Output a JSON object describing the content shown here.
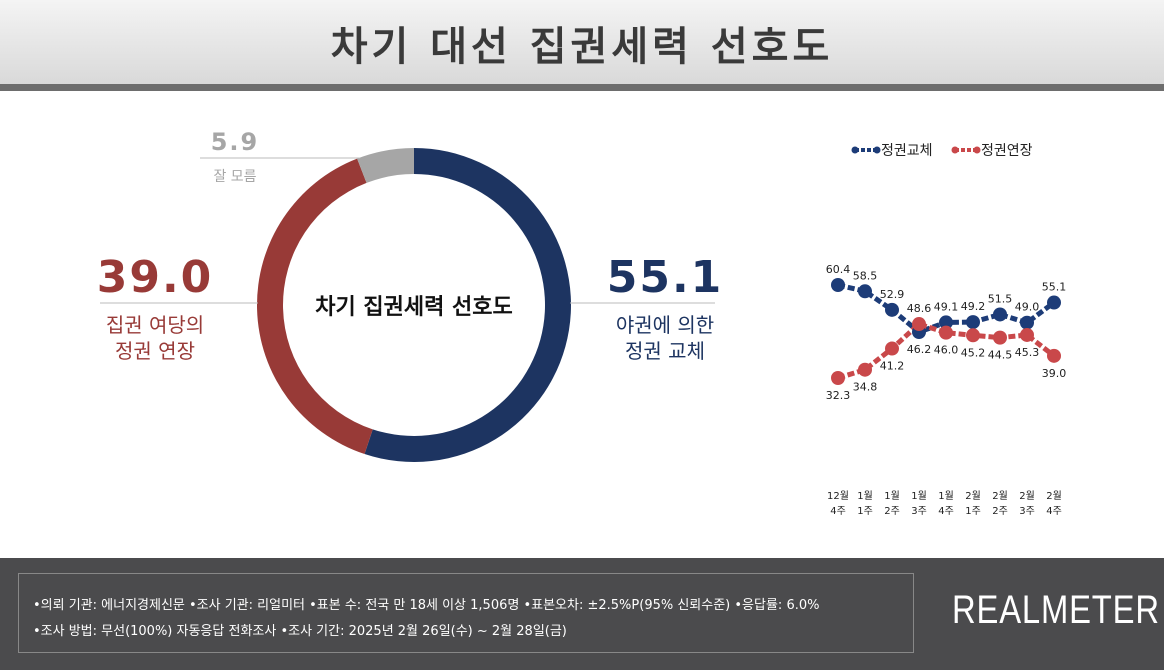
{
  "header": {
    "title": "차기 대선 집권세력 선호도"
  },
  "chart_data": [
    {
      "type": "donut",
      "center_label": "차기 집권세력 선호도",
      "categories": [
        "야권에 의한\n정권 교체",
        "집권 여당의\n정권 연장",
        "잘 모름"
      ],
      "values": [
        55.1,
        39,
        5.9
      ],
      "value_labels": [
        "55.1",
        "39.0",
        "5.9"
      ],
      "colors": [
        "#1d3461",
        "#983a37",
        "#a6a6a6"
      ]
    },
    {
      "type": "line",
      "x": [
        "12월\n4주",
        "1월\n1주",
        "1월\n2주",
        "1월\n3주",
        "1월\n4주",
        "2월\n1주",
        "2월\n2주",
        "2월\n3주",
        "2월\n4주"
      ],
      "series": [
        {
          "name": "정권교체",
          "color": "#1d3c78",
          "values": [
            60.4,
            58.5,
            52.9,
            46.2,
            49.1,
            49.2,
            51.5,
            49,
            55.1
          ],
          "value_labels": [
            "60.4",
            "58.5",
            "52.9",
            "46.2",
            "49.1",
            "49.2",
            "51.5",
            "49.0",
            "55.1"
          ]
        },
        {
          "name": "정권연장",
          "color": "#c9484a",
          "values": [
            32.3,
            34.8,
            41.2,
            48.6,
            46,
            45.2,
            44.5,
            45.3,
            39
          ],
          "value_labels": [
            "32.3",
            "34.8",
            "41.2",
            "48.6",
            "46.0",
            "45.2",
            "44.5",
            "45.3",
            "39.0"
          ]
        }
      ]
    }
  ],
  "footer": {
    "notes": [
      "•의뢰 기관: 에너지경제신문 •조사 기관: 리얼미터 •표본 수: 전국 만 18세 이상 1,506명 •표본오차: ±2.5%P(95% 신뢰수준) •응답률: 6.0%",
      "•조사 방법: 무선(100%) 자동응답 전화조사 •조사 기간: 2025년 2월 26일(수) ~ 2월 28일(금)"
    ],
    "logo": "REALMETER"
  }
}
